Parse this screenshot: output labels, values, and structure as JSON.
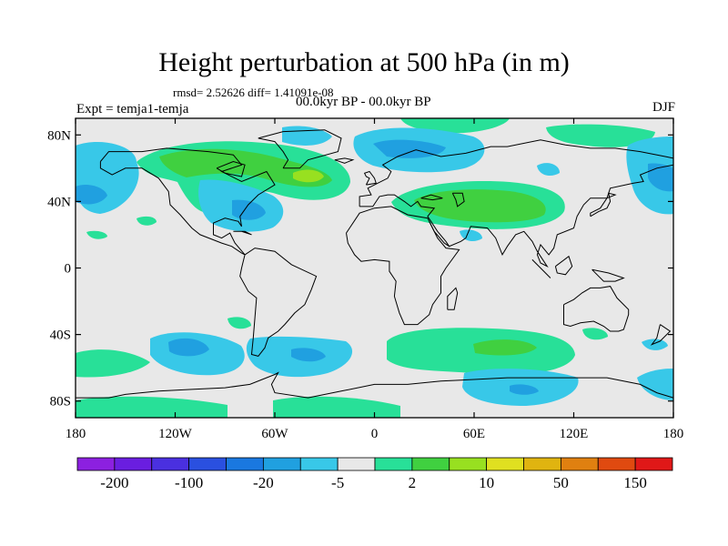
{
  "title": "Height perturbation at 500 hPa (in m)",
  "stats": "rmsd= 2.52626 diff= 1.41091e-08",
  "period": "00.0kyr BP - 00.0kyr BP",
  "experiment": "Expt = temja1-temja",
  "season": "DJF",
  "lat_ticks": [
    {
      "label": "80N",
      "lat": 80
    },
    {
      "label": "40N",
      "lat": 40
    },
    {
      "label": "0",
      "lat": 0
    },
    {
      "label": "40S",
      "lat": -40
    },
    {
      "label": "80S",
      "lat": -80
    }
  ],
  "lon_ticks": [
    {
      "label": "180",
      "lon": -180
    },
    {
      "label": "120W",
      "lon": -120
    },
    {
      "label": "60W",
      "lon": -60
    },
    {
      "label": "0",
      "lon": 0
    },
    {
      "label": "60E",
      "lon": 60
    },
    {
      "label": "120E",
      "lon": 120
    },
    {
      "label": "180",
      "lon": 180
    }
  ],
  "colorbar": {
    "colors": [
      "#8c20e0",
      "#6a1ee0",
      "#4a30e0",
      "#2a50e0",
      "#1a78e0",
      "#20a0e0",
      "#38c8e8",
      "#e8e8e8",
      "#28e098",
      "#40d040",
      "#98e020",
      "#e0e020",
      "#e0b410",
      "#e08010",
      "#e04a10",
      "#e01818"
    ],
    "labels": [
      {
        "text": "-200",
        "boundary": 1
      },
      {
        "text": "-100",
        "boundary": 3
      },
      {
        "text": "-20",
        "boundary": 5
      },
      {
        "text": "-5",
        "boundary": 7
      },
      {
        "text": "2",
        "boundary": 9
      },
      {
        "text": "10",
        "boundary": 11
      },
      {
        "text": "50",
        "boundary": 13
      },
      {
        "text": "150",
        "boundary": 15
      }
    ]
  },
  "field_colors": {
    "background": "#e8e8e8",
    "neg_light": "#38c8e8",
    "neg_mid": "#20a0e0",
    "pos_light": "#28e098",
    "pos_mid": "#40d040",
    "pos_high": "#98e020",
    "coast": "#000000"
  }
}
